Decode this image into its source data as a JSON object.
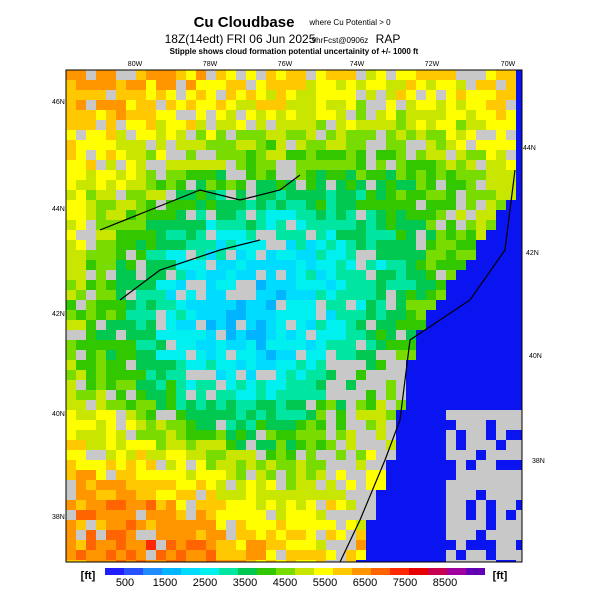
{
  "header": {
    "title": "Cu Cloudbase",
    "title_note": "where Cu Potential > 0",
    "valid_time": "18Z(14edt) FRI 06 Jun 2025",
    "forecast": "9hrFcst@0906z",
    "model": "RAP",
    "note": "Stipple shows cloud formation potential uncertainity of +/- 1000 ft"
  },
  "map": {
    "top_lon_labels": [
      "80W",
      "78W",
      "76W",
      "74W",
      "72W",
      "70W"
    ],
    "left_lat_labels": [
      "46N",
      "44N",
      "42N",
      "40N",
      "38N"
    ],
    "right_lat_labels": [
      "44N",
      "42N",
      "40N",
      "38N"
    ]
  },
  "colorbar": {
    "unit_left": "[ft]",
    "unit_right": "[ft]",
    "ticks": [
      500,
      1500,
      2500,
      3500,
      4500,
      5500,
      6500,
      7500,
      8500
    ]
  }
}
